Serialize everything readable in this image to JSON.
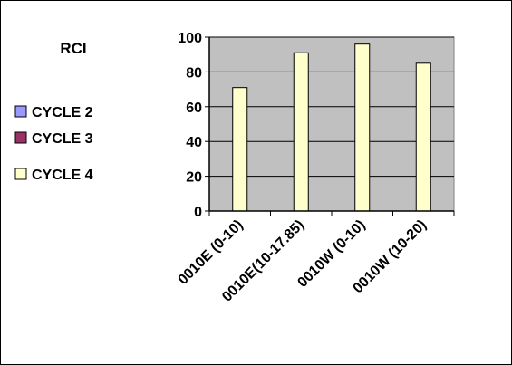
{
  "chart_data": {
    "type": "bar",
    "title": "",
    "xlabel": "",
    "ylabel": "",
    "legend_title": "RCI",
    "legend_position": "left",
    "grid": true,
    "ylim": [
      0,
      100
    ],
    "yticks": [
      0,
      20,
      40,
      60,
      80,
      100
    ],
    "categories": [
      "0010E (0-10)",
      "0010E(10-17.85)",
      "0010W (0-10)",
      "0010W (10-20)"
    ],
    "series": [
      {
        "name": "CYCLE 2",
        "color": "#9999FF",
        "values": [
          null,
          null,
          null,
          null
        ]
      },
      {
        "name": "CYCLE 3",
        "color": "#993366",
        "values": [
          null,
          null,
          null,
          null
        ]
      },
      {
        "name": "CYCLE 4",
        "color": "#FFFFCC",
        "values": [
          71,
          91,
          96,
          85
        ]
      }
    ],
    "plot_background": "#C0C0C0"
  }
}
